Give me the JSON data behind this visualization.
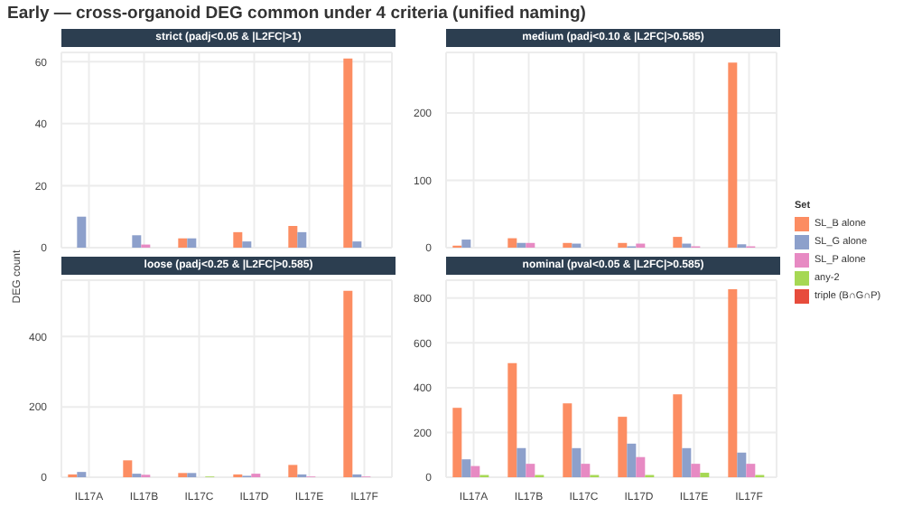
{
  "chart_data": [
    {
      "type": "bar",
      "title": "Early — cross-organoid DEG common under 4 criteria (unified naming)",
      "subtitle": "strict (padj<0.05 & |L2FC|>1)",
      "ylabel": "DEG count",
      "categories": [
        null,
        null,
        null,
        null,
        null,
        null
      ],
      "ylim": [
        0,
        63
      ],
      "yticks": [
        0,
        20,
        40,
        60
      ],
      "grid": true,
      "tick_labels": "y",
      "series": [
        {
          "color": "#fc8d62",
          "values": [
            null,
            null,
            3,
            5,
            7,
            61
          ]
        },
        {
          "color": "#8da0cb",
          "values": [
            10,
            4,
            3,
            2,
            5,
            2
          ]
        },
        {
          "color": "#e78ac3",
          "values": [
            null,
            1,
            null,
            null,
            null,
            null
          ]
        },
        {
          "color": "#a6d854",
          "values": [
            null,
            null,
            null,
            null,
            null,
            null
          ]
        },
        {
          "color": "#e74c3c",
          "values": [
            null,
            null,
            null,
            null,
            null,
            null
          ]
        }
      ]
    },
    {
      "type": "bar",
      "subtitle": "medium (padj<0.10 & |L2FC|>0.585)",
      "legend_title": "Set",
      "legend": "right",
      "categories": [
        null,
        null,
        null,
        null,
        null,
        null
      ],
      "ylim": [
        0,
        290
      ],
      "yticks": [
        0,
        100,
        200
      ],
      "grid": true,
      "tick_labels": "y",
      "series": [
        {
          "name": "SL_B alone",
          "color": "#fc8d62",
          "values": [
            3,
            14,
            7,
            7,
            16,
            275
          ]
        },
        {
          "name": "SL_G alone",
          "color": "#8da0cb",
          "values": [
            12,
            7,
            6,
            2,
            6,
            5
          ]
        },
        {
          "name": "SL_P alone",
          "color": "#e78ac3",
          "values": [
            null,
            7,
            null,
            6,
            2,
            2
          ]
        },
        {
          "name": "any-2",
          "color": "#a6d854",
          "values": [
            null,
            null,
            null,
            null,
            null,
            null
          ]
        },
        {
          "name": "triple (B∩G∩P)",
          "color": "#e74c3c",
          "values": [
            null,
            null,
            null,
            null,
            null,
            null
          ]
        }
      ]
    },
    {
      "type": "bar",
      "subtitle": "loose (padj<0.25 & |L2FC|>0.585)",
      "categories": [
        "IL17A",
        "IL17B",
        "IL17C",
        "IL17D",
        "IL17E",
        "IL17F"
      ],
      "ylim": [
        0,
        560
      ],
      "yticks": [
        0,
        200,
        400
      ],
      "grid": true,
      "series": [
        {
          "color": "#fc8d62",
          "values": [
            8,
            48,
            12,
            8,
            35,
            530
          ]
        },
        {
          "color": "#8da0cb",
          "values": [
            15,
            10,
            12,
            4,
            8,
            8
          ]
        },
        {
          "color": "#e78ac3",
          "values": [
            null,
            7,
            null,
            10,
            2,
            2
          ]
        },
        {
          "color": "#a6d854",
          "values": [
            null,
            null,
            2,
            null,
            null,
            null
          ]
        },
        {
          "color": "#e74c3c",
          "values": [
            null,
            null,
            null,
            null,
            null,
            null
          ]
        }
      ]
    },
    {
      "type": "bar",
      "subtitle": "nominal (pval<0.05 & |L2FC|>0.585)",
      "categories": [
        "IL17A",
        "IL17B",
        "IL17C",
        "IL17D",
        "IL17E",
        "IL17F"
      ],
      "ylim": [
        0,
        880
      ],
      "yticks": [
        0,
        200,
        400,
        600,
        800
      ],
      "grid": true,
      "series": [
        {
          "color": "#fc8d62",
          "values": [
            310,
            510,
            330,
            270,
            370,
            840
          ]
        },
        {
          "color": "#8da0cb",
          "values": [
            80,
            130,
            130,
            150,
            130,
            110
          ]
        },
        {
          "color": "#e78ac3",
          "values": [
            50,
            60,
            60,
            90,
            60,
            60
          ]
        },
        {
          "color": "#a6d854",
          "values": [
            10,
            10,
            10,
            10,
            20,
            10
          ]
        },
        {
          "color": "#e74c3c",
          "values": [
            null,
            null,
            null,
            null,
            null,
            null
          ]
        }
      ]
    }
  ]
}
